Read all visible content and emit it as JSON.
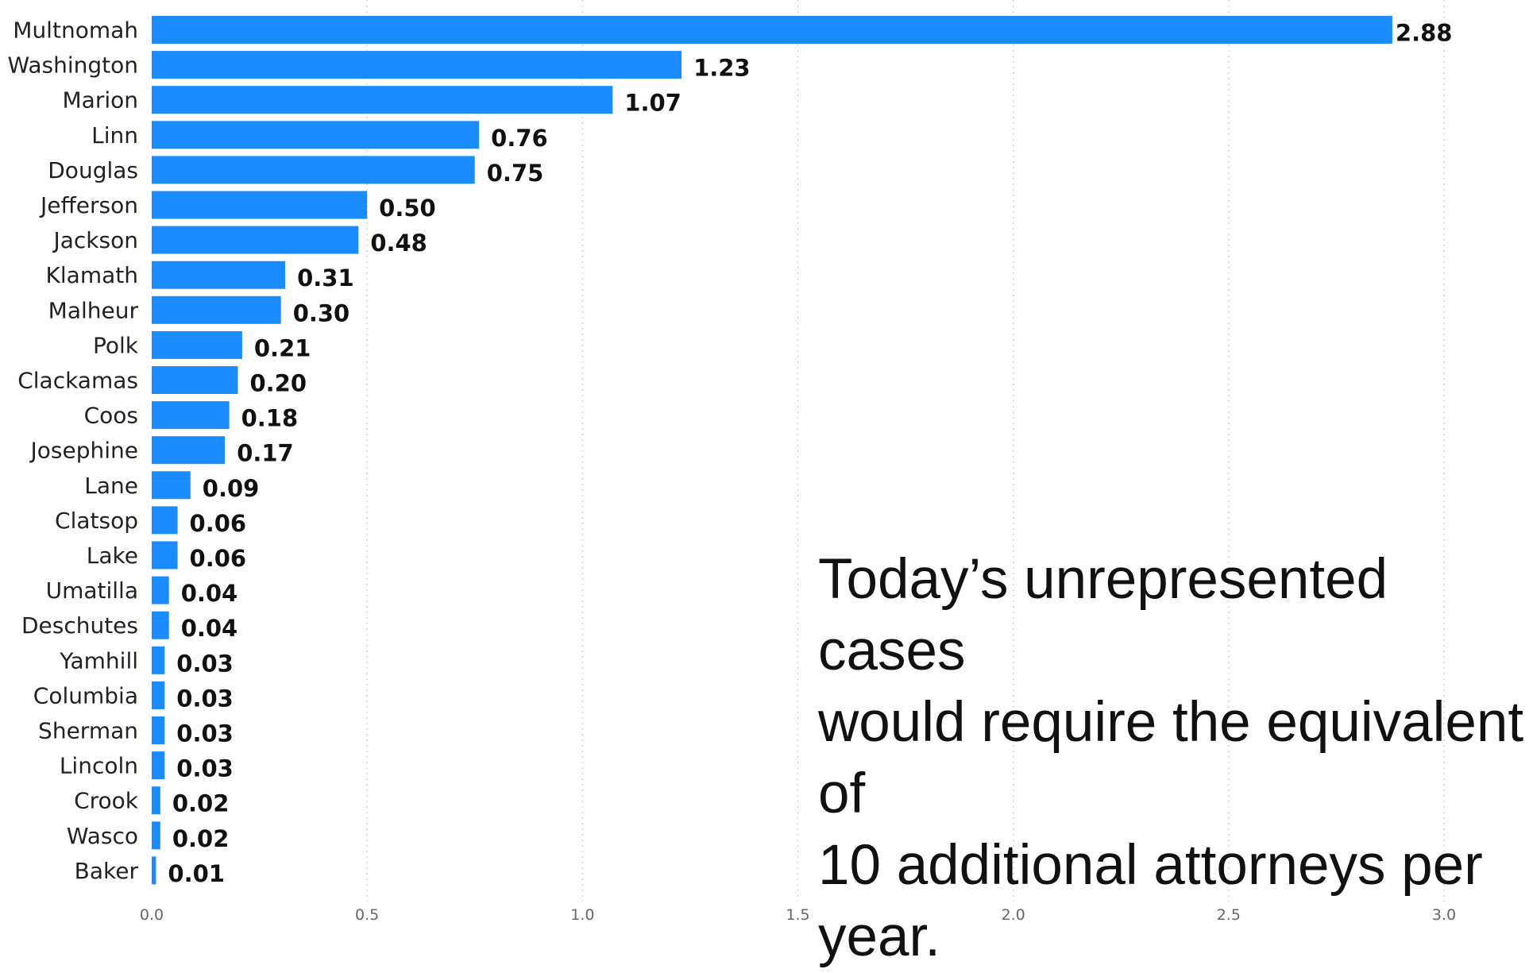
{
  "chart_data": {
    "type": "bar",
    "orientation": "horizontal",
    "title": "",
    "xlabel": "",
    "ylabel": "",
    "xlim": [
      0,
      3.0
    ],
    "x_ticks": [
      "0.0",
      "0.5",
      "1.0",
      "1.5",
      "2.0",
      "2.5",
      "3.0"
    ],
    "x_tick_values": [
      0,
      0.5,
      1.0,
      1.5,
      2.0,
      2.5,
      3.0
    ],
    "grid": "vertical dotted",
    "bar_color": "#1a8cff",
    "categories": [
      "Multnomah",
      "Washington",
      "Marion",
      "Linn",
      "Douglas",
      "Jefferson",
      "Jackson",
      "Klamath",
      "Malheur",
      "Polk",
      "Clackamas",
      "Coos",
      "Josephine",
      "Lane",
      "Clatsop",
      "Lake",
      "Umatilla",
      "Deschutes",
      "Yamhill",
      "Columbia",
      "Sherman",
      "Lincoln",
      "Crook",
      "Wasco",
      "Baker"
    ],
    "values": [
      2.88,
      1.23,
      1.07,
      0.76,
      0.75,
      0.5,
      0.48,
      0.31,
      0.3,
      0.21,
      0.2,
      0.18,
      0.17,
      0.09,
      0.06,
      0.06,
      0.04,
      0.04,
      0.03,
      0.03,
      0.03,
      0.03,
      0.02,
      0.02,
      0.01
    ],
    "value_labels": [
      "2.88",
      "1.23",
      "1.07",
      "0.76",
      "0.75",
      "0.50",
      "0.48",
      "0.31",
      "0.30",
      "0.21",
      "0.20",
      "0.18",
      "0.17",
      "0.09",
      "0.06",
      "0.06",
      "0.04",
      "0.04",
      "0.03",
      "0.03",
      "0.03",
      "0.03",
      "0.02",
      "0.02",
      "0.01"
    ]
  },
  "annotation": {
    "text": "Today’s unrepresented cases\nwould require the equivalent of\n10 additional attorneys per\nyear."
  }
}
